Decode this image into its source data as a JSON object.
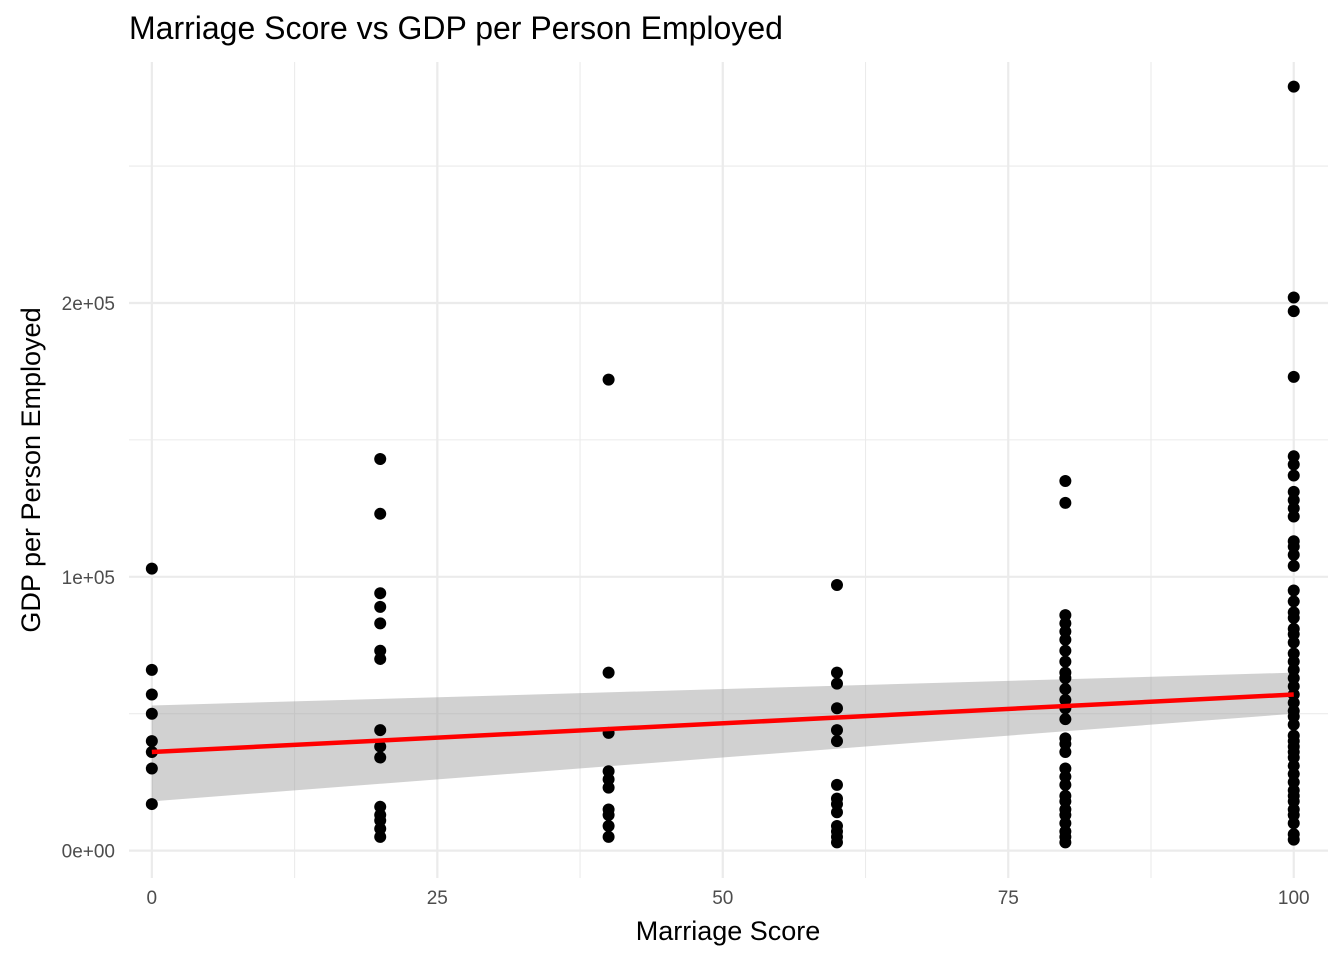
{
  "chart_data": {
    "type": "scatter",
    "title": "Marriage Score vs GDP per Person Employed",
    "xlabel": "Marriage Score",
    "ylabel": "GDP per Person Employed",
    "xlim": [
      -2,
      103
    ],
    "ylim": [
      -10000,
      288000
    ],
    "x_ticks": [
      0,
      25,
      50,
      75,
      100
    ],
    "x_tick_labels": [
      "0",
      "25",
      "50",
      "75",
      "100"
    ],
    "y_ticks": [
      0,
      100000,
      200000
    ],
    "y_tick_labels": [
      "0e+00",
      "1e+05",
      "2e+05"
    ],
    "grid": true,
    "points": [
      {
        "x": 0,
        "y": 103000
      },
      {
        "x": 0,
        "y": 66000
      },
      {
        "x": 0,
        "y": 57000
      },
      {
        "x": 0,
        "y": 50000
      },
      {
        "x": 0,
        "y": 40000
      },
      {
        "x": 0,
        "y": 36000
      },
      {
        "x": 0,
        "y": 30000
      },
      {
        "x": 0,
        "y": 17000
      },
      {
        "x": 20,
        "y": 143000
      },
      {
        "x": 20,
        "y": 123000
      },
      {
        "x": 20,
        "y": 94000
      },
      {
        "x": 20,
        "y": 89000
      },
      {
        "x": 20,
        "y": 83000
      },
      {
        "x": 20,
        "y": 73000
      },
      {
        "x": 20,
        "y": 70000
      },
      {
        "x": 20,
        "y": 44000
      },
      {
        "x": 20,
        "y": 38000
      },
      {
        "x": 20,
        "y": 34000
      },
      {
        "x": 20,
        "y": 16000
      },
      {
        "x": 20,
        "y": 13000
      },
      {
        "x": 20,
        "y": 11000
      },
      {
        "x": 20,
        "y": 8000
      },
      {
        "x": 20,
        "y": 5000
      },
      {
        "x": 40,
        "y": 172000
      },
      {
        "x": 40,
        "y": 65000
      },
      {
        "x": 40,
        "y": 43000
      },
      {
        "x": 40,
        "y": 29000
      },
      {
        "x": 40,
        "y": 26000
      },
      {
        "x": 40,
        "y": 23000
      },
      {
        "x": 40,
        "y": 15000
      },
      {
        "x": 40,
        "y": 13000
      },
      {
        "x": 40,
        "y": 9000
      },
      {
        "x": 40,
        "y": 5000
      },
      {
        "x": 60,
        "y": 97000
      },
      {
        "x": 60,
        "y": 65000
      },
      {
        "x": 60,
        "y": 61000
      },
      {
        "x": 60,
        "y": 52000
      },
      {
        "x": 60,
        "y": 44000
      },
      {
        "x": 60,
        "y": 40000
      },
      {
        "x": 60,
        "y": 24000
      },
      {
        "x": 60,
        "y": 19000
      },
      {
        "x": 60,
        "y": 17000
      },
      {
        "x": 60,
        "y": 14000
      },
      {
        "x": 60,
        "y": 9000
      },
      {
        "x": 60,
        "y": 7000
      },
      {
        "x": 60,
        "y": 5000
      },
      {
        "x": 60,
        "y": 3000
      },
      {
        "x": 80,
        "y": 135000
      },
      {
        "x": 80,
        "y": 127000
      },
      {
        "x": 80,
        "y": 86000
      },
      {
        "x": 80,
        "y": 83000
      },
      {
        "x": 80,
        "y": 80000
      },
      {
        "x": 80,
        "y": 77000
      },
      {
        "x": 80,
        "y": 73000
      },
      {
        "x": 80,
        "y": 69000
      },
      {
        "x": 80,
        "y": 65000
      },
      {
        "x": 80,
        "y": 63000
      },
      {
        "x": 80,
        "y": 59000
      },
      {
        "x": 80,
        "y": 55000
      },
      {
        "x": 80,
        "y": 52000
      },
      {
        "x": 80,
        "y": 48000
      },
      {
        "x": 80,
        "y": 41000
      },
      {
        "x": 80,
        "y": 39000
      },
      {
        "x": 80,
        "y": 36000
      },
      {
        "x": 80,
        "y": 30000
      },
      {
        "x": 80,
        "y": 27000
      },
      {
        "x": 80,
        "y": 24000
      },
      {
        "x": 80,
        "y": 20000
      },
      {
        "x": 80,
        "y": 18000
      },
      {
        "x": 80,
        "y": 15000
      },
      {
        "x": 80,
        "y": 13000
      },
      {
        "x": 80,
        "y": 10000
      },
      {
        "x": 80,
        "y": 7000
      },
      {
        "x": 80,
        "y": 5000
      },
      {
        "x": 80,
        "y": 3000
      },
      {
        "x": 100,
        "y": 279000
      },
      {
        "x": 100,
        "y": 202000
      },
      {
        "x": 100,
        "y": 197000
      },
      {
        "x": 100,
        "y": 173000
      },
      {
        "x": 100,
        "y": 144000
      },
      {
        "x": 100,
        "y": 141000
      },
      {
        "x": 100,
        "y": 137000
      },
      {
        "x": 100,
        "y": 131000
      },
      {
        "x": 100,
        "y": 128000
      },
      {
        "x": 100,
        "y": 125000
      },
      {
        "x": 100,
        "y": 122000
      },
      {
        "x": 100,
        "y": 113000
      },
      {
        "x": 100,
        "y": 111000
      },
      {
        "x": 100,
        "y": 108000
      },
      {
        "x": 100,
        "y": 104000
      },
      {
        "x": 100,
        "y": 95000
      },
      {
        "x": 100,
        "y": 91000
      },
      {
        "x": 100,
        "y": 87000
      },
      {
        "x": 100,
        "y": 85000
      },
      {
        "x": 100,
        "y": 81000
      },
      {
        "x": 100,
        "y": 79000
      },
      {
        "x": 100,
        "y": 76000
      },
      {
        "x": 100,
        "y": 72000
      },
      {
        "x": 100,
        "y": 69000
      },
      {
        "x": 100,
        "y": 66000
      },
      {
        "x": 100,
        "y": 63000
      },
      {
        "x": 100,
        "y": 60000
      },
      {
        "x": 100,
        "y": 57000
      },
      {
        "x": 100,
        "y": 54000
      },
      {
        "x": 100,
        "y": 51000
      },
      {
        "x": 100,
        "y": 49000
      },
      {
        "x": 100,
        "y": 46000
      },
      {
        "x": 100,
        "y": 42000
      },
      {
        "x": 100,
        "y": 40000
      },
      {
        "x": 100,
        "y": 38000
      },
      {
        "x": 100,
        "y": 36000
      },
      {
        "x": 100,
        "y": 34000
      },
      {
        "x": 100,
        "y": 31000
      },
      {
        "x": 100,
        "y": 28000
      },
      {
        "x": 100,
        "y": 25000
      },
      {
        "x": 100,
        "y": 22000
      },
      {
        "x": 100,
        "y": 20000
      },
      {
        "x": 100,
        "y": 18000
      },
      {
        "x": 100,
        "y": 15000
      },
      {
        "x": 100,
        "y": 13000
      },
      {
        "x": 100,
        "y": 10000
      },
      {
        "x": 100,
        "y": 6000
      },
      {
        "x": 100,
        "y": 4000
      }
    ],
    "trend_line": {
      "x": [
        0,
        100
      ],
      "y": [
        36000,
        57000
      ],
      "ci_lower": [
        18000,
        50000
      ],
      "ci_upper": [
        53000,
        65000
      ],
      "color": "#ff0000",
      "band_color": "#999999"
    },
    "point_color": "#000000",
    "grid_color": "#ebebeb"
  }
}
